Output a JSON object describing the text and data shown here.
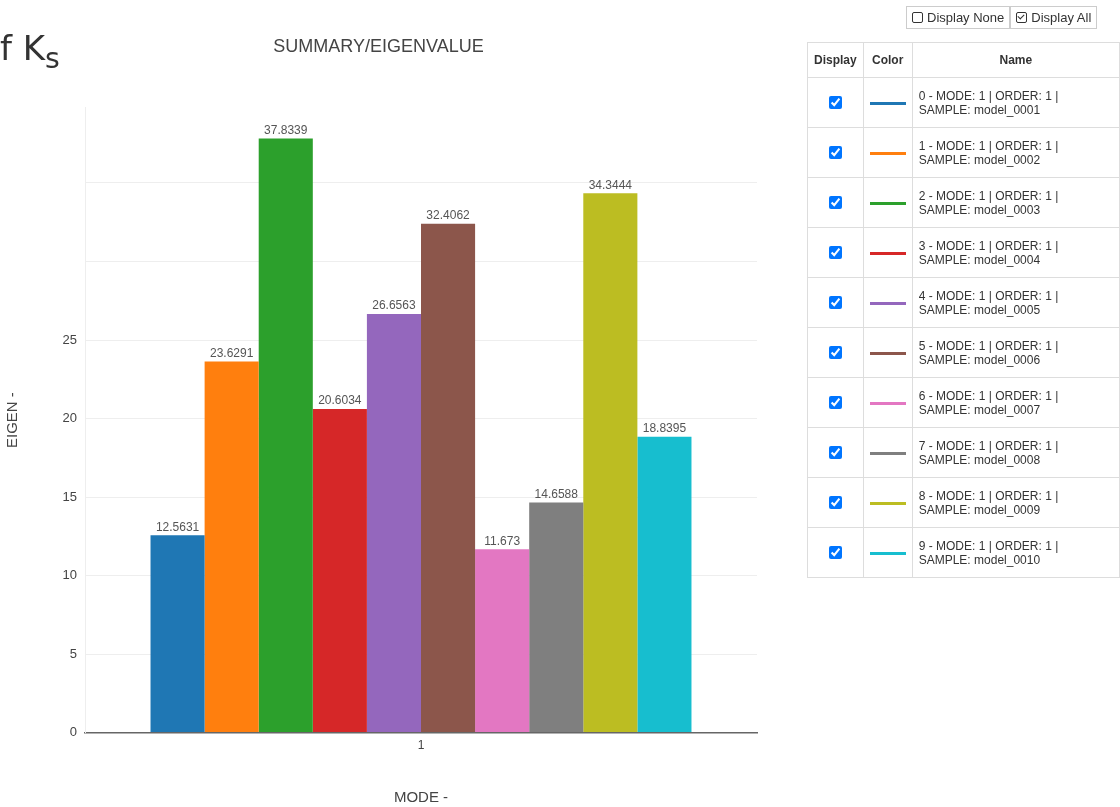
{
  "chart_data": {
    "type": "bar",
    "title": "SUMMARY/EIGENVALUE",
    "xlabel": "MODE -",
    "ylabel": "EIGEN -",
    "categories": [
      "1"
    ],
    "series": [
      {
        "name": "0 - MODE: 1 | ORDER: 1 | SAMPLE: model_0001",
        "color": "#1f77b4",
        "values": [
          12.5631
        ]
      },
      {
        "name": "1 - MODE: 1 | ORDER: 1 | SAMPLE: model_0002",
        "color": "#ff7f0e",
        "values": [
          23.6291
        ]
      },
      {
        "name": "2 - MODE: 1 | ORDER: 1 | SAMPLE: model_0003",
        "color": "#2ca02c",
        "values": [
          37.8339
        ]
      },
      {
        "name": "3 - MODE: 1 | ORDER: 1 | SAMPLE: model_0004",
        "color": "#d62728",
        "values": [
          20.6034
        ]
      },
      {
        "name": "4 - MODE: 1 | ORDER: 1 | SAMPLE: model_0005",
        "color": "#9467bd",
        "values": [
          26.6563
        ]
      },
      {
        "name": "5 - MODE: 1 | ORDER: 1 | SAMPLE: model_0006",
        "color": "#8c564b",
        "values": [
          32.4062
        ]
      },
      {
        "name": "6 - MODE: 1 | ORDER: 1 | SAMPLE: model_0007",
        "color": "#e377c2",
        "values": [
          11.673
        ]
      },
      {
        "name": "7 - MODE: 1 | ORDER: 1 | SAMPLE: model_0008",
        "color": "#7f7f7f",
        "values": [
          14.6588
        ]
      },
      {
        "name": "8 - MODE: 1 | ORDER: 1 | SAMPLE: model_0009",
        "color": "#bcbd22",
        "values": [
          34.3444
        ]
      },
      {
        "name": "9 - MODE: 1 | ORDER: 1 | SAMPLE: model_0010",
        "color": "#17becf",
        "values": [
          18.8395
        ]
      }
    ],
    "ylim": [
      0,
      39.8
    ],
    "yticks": [
      0,
      5,
      10,
      15,
      20,
      25,
      {
        "value": 30,
        "label": null
      },
      {
        "value": 35,
        "label": null
      }
    ],
    "grid": "y",
    "legend": "right",
    "data_labels": true,
    "annotations": [
      "f K$_{s}$",
      "Display None",
      "Display All",
      "Display",
      "Color",
      "Name"
    ]
  }
}
